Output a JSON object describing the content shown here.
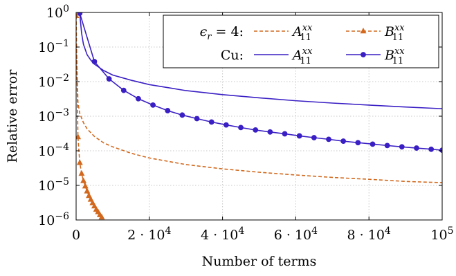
{
  "chart_data": {
    "type": "line",
    "title": "",
    "xlabel": "Number of terms",
    "ylabel": "Relative error",
    "xlim": [
      0,
      100000
    ],
    "ylim": [
      1e-06,
      1
    ],
    "yscale": "log",
    "grid": true,
    "legend_position": "top-right",
    "x_ticks": [
      {
        "value": 0,
        "mant": "0",
        "exp": ""
      },
      {
        "value": 20000,
        "mant": "2 · 10",
        "exp": "4"
      },
      {
        "value": 40000,
        "mant": "4 · 10",
        "exp": "4"
      },
      {
        "value": 60000,
        "mant": "6 · 10",
        "exp": "4"
      },
      {
        "value": 80000,
        "mant": "8 · 10",
        "exp": "4"
      },
      {
        "value": 100000,
        "mant": "10",
        "exp": "5"
      }
    ],
    "y_ticks": [
      {
        "value": 1,
        "mant": "10",
        "exp": "0"
      },
      {
        "value": 0.1,
        "mant": "10",
        "exp": "−1"
      },
      {
        "value": 0.01,
        "mant": "10",
        "exp": "−2"
      },
      {
        "value": 0.001,
        "mant": "10",
        "exp": "−3"
      },
      {
        "value": 0.0001,
        "mant": "10",
        "exp": "−4"
      },
      {
        "value": 1e-05,
        "mant": "10",
        "exp": "−5"
      },
      {
        "value": 1e-06,
        "mant": "10",
        "exp": "−6"
      }
    ],
    "legend_groups": [
      "ϵr = 4:",
      "Cu:"
    ],
    "legend_entries": [
      "A11xx",
      "B11xx"
    ],
    "series": [
      {
        "group": "ϵr = 4:",
        "entry": "A11xx",
        "color": "#d2691e",
        "dash": "dashed",
        "marker": "none",
        "x": [
          100,
          500,
          1000,
          2000,
          3000,
          5000,
          7500,
          10000,
          15000,
          20000,
          30000,
          40000,
          50000,
          60000,
          70000,
          80000,
          90000,
          100000
        ],
        "y": [
          0.12,
          0.0025,
          0.0012,
          0.00065,
          0.00043,
          0.00026,
          0.00017,
          0.00013,
          8.5e-05,
          6.2e-05,
          4e-05,
          3e-05,
          2.4e-05,
          2e-05,
          1.7e-05,
          1.5e-05,
          1.3e-05,
          1.2e-05
        ]
      },
      {
        "group": "ϵr = 4:",
        "entry": "B11xx",
        "color": "#d2691e",
        "dash": "dashed",
        "marker": "triangle",
        "x": [
          0,
          500,
          1000,
          1500,
          2000,
          2500,
          3000,
          3500,
          4000,
          4500,
          5000,
          5500,
          6000,
          6500,
          7000
        ],
        "y": [
          0.8,
          0.00025,
          4.5e-05,
          2.2e-05,
          1.35e-05,
          9.5e-06,
          6.8e-06,
          5e-06,
          3.9e-06,
          3.1e-06,
          2.5e-06,
          2e-06,
          1.7e-06,
          1.4e-06,
          1.2e-06
        ]
      },
      {
        "group": "Cu:",
        "entry": "A11xx",
        "color": "#3a1fc4",
        "dash": "solid",
        "marker": "none",
        "x": [
          1000,
          1500,
          2000,
          3000,
          4000,
          5000,
          7500,
          10000,
          15000,
          20000,
          30000,
          40000,
          50000,
          60000,
          70000,
          80000,
          90000,
          100000
        ],
        "y": [
          0.9,
          0.25,
          0.12,
          0.06,
          0.042,
          0.032,
          0.021,
          0.0155,
          0.011,
          0.0082,
          0.0055,
          0.0042,
          0.0034,
          0.0028,
          0.0024,
          0.0021,
          0.00185,
          0.00165
        ]
      },
      {
        "group": "Cu:",
        "entry": "B11xx",
        "color": "#3a1fc4",
        "dash": "solid",
        "marker": "circle",
        "x": [
          1000,
          5000,
          9000,
          13000,
          17000,
          21000,
          25000,
          29000,
          33000,
          37000,
          41000,
          45000,
          49000,
          53000,
          57000,
          61000,
          65000,
          69000,
          73000,
          77000,
          81000,
          85000,
          89000,
          93000,
          97000,
          100000
        ],
        "y": [
          0.95,
          0.038,
          0.012,
          0.0056,
          0.0032,
          0.0021,
          0.00145,
          0.00108,
          0.00085,
          0.00068,
          0.00056,
          0.00047,
          0.0004,
          0.00035,
          0.00031,
          0.00027,
          0.00024,
          0.000215,
          0.00019,
          0.000172,
          0.000156,
          0.000142,
          0.00013,
          0.00012,
          0.000111,
          0.000104
        ]
      }
    ]
  }
}
